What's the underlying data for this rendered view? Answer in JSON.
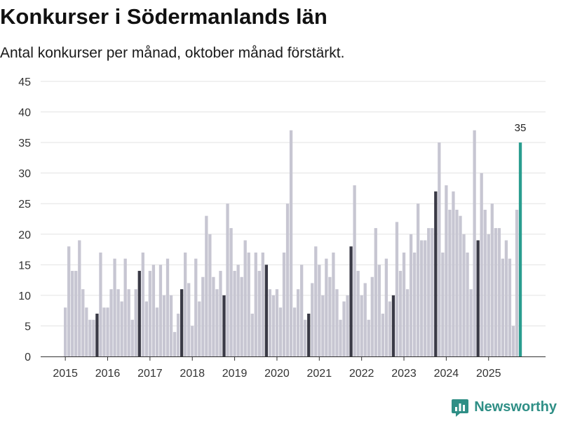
{
  "header": {
    "title": "Konkurser i Södermanlands län",
    "subtitle": "Antal konkurser per månad, oktober månad förstärkt."
  },
  "brand": {
    "name": "Newsworthy",
    "color": "#2f8f86"
  },
  "chart_data": {
    "type": "bar",
    "title": "Konkurser i Södermanlands län",
    "subtitle": "Antal konkurser per månad, oktober månad förstärkt.",
    "xlabel": "",
    "ylabel": "",
    "ylim": [
      0,
      45
    ],
    "yticks": [
      0,
      5,
      10,
      15,
      20,
      25,
      30,
      35,
      40,
      45
    ],
    "grid": true,
    "start_month": "2015-01",
    "highlight_month": "oktober",
    "xtick_labels": [
      "2015",
      "2016",
      "2017",
      "2018",
      "2019",
      "2020",
      "2021",
      "2022",
      "2023",
      "2024",
      "2025"
    ],
    "values": [
      8,
      18,
      14,
      14,
      19,
      11,
      8,
      6,
      6,
      7,
      17,
      8,
      8,
      11,
      16,
      11,
      9,
      16,
      11,
      6,
      11,
      14,
      17,
      9,
      14,
      15,
      8,
      15,
      10,
      16,
      10,
      4,
      7,
      11,
      17,
      12,
      5,
      16,
      9,
      13,
      23,
      20,
      13,
      11,
      14,
      10,
      25,
      21,
      14,
      15,
      13,
      19,
      17,
      7,
      17,
      14,
      17,
      15,
      11,
      10,
      11,
      8,
      17,
      25,
      37,
      8,
      11,
      15,
      6,
      7,
      12,
      18,
      15,
      10,
      16,
      13,
      17,
      11,
      6,
      9,
      10,
      18,
      28,
      14,
      10,
      12,
      6,
      13,
      21,
      15,
      7,
      16,
      9,
      10,
      22,
      14,
      17,
      11,
      20,
      17,
      25,
      19,
      19,
      21,
      21,
      27,
      35,
      17,
      28,
      24,
      27,
      24,
      23,
      20,
      17,
      11,
      37,
      19,
      30,
      24,
      20,
      25,
      21,
      21,
      16,
      19,
      16,
      5,
      24,
      35
    ],
    "annotations": [
      {
        "label": "35",
        "month": "2025-10",
        "value": 35
      }
    ],
    "colors": {
      "normal": "#c7c6d2",
      "october": "#3a3a46",
      "latest": "#2a9d8f",
      "grid": "#e3e3e3",
      "axis": "#333333"
    }
  }
}
